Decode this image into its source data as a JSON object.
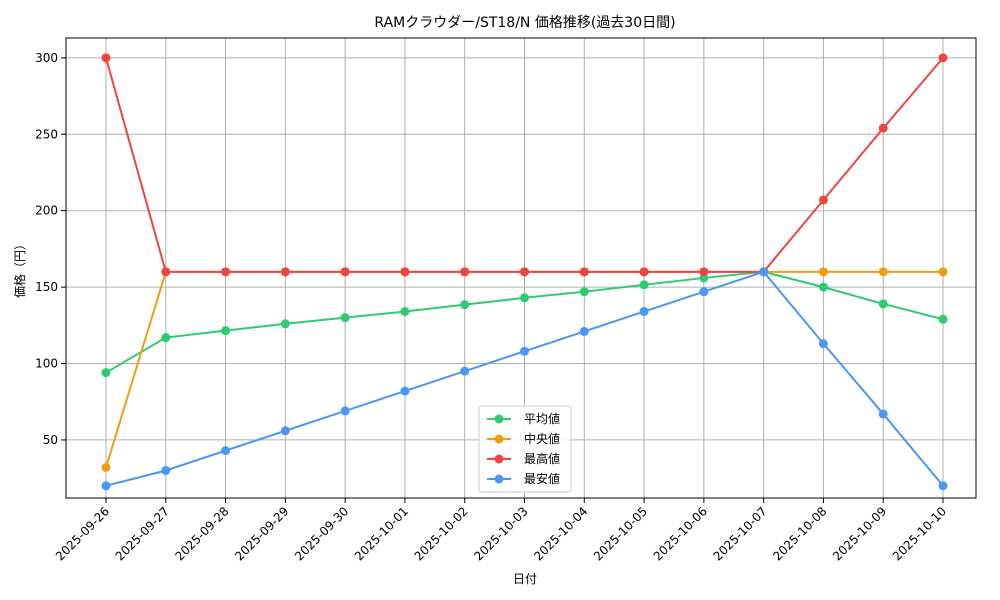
{
  "chart_data": {
    "type": "line",
    "title": "RAMクラウダー/ST18/N 価格推移(過去30日間)",
    "xlabel": "日付",
    "ylabel": "価格（円）",
    "x": [
      "2025-09-26",
      "2025-09-27",
      "2025-09-28",
      "2025-09-29",
      "2025-09-30",
      "2025-10-01",
      "2025-10-02",
      "2025-10-03",
      "2025-10-04",
      "2025-10-05",
      "2025-10-06",
      "2025-10-07",
      "2025-10-08",
      "2025-10-09",
      "2025-10-10"
    ],
    "ylim": [
      12,
      313
    ],
    "yticks": [
      50,
      100,
      150,
      200,
      250,
      300
    ],
    "grid": true,
    "legend_position": "lower-center",
    "series": [
      {
        "name": "平均値",
        "color": "#2ecc71",
        "values": [
          94,
          117,
          121.5,
          126,
          130,
          134,
          138.5,
          143,
          147,
          151.5,
          156,
          160,
          150,
          139,
          129
        ]
      },
      {
        "name": "中央値",
        "color": "#f39c12",
        "values": [
          32,
          160,
          160,
          160,
          160,
          160,
          160,
          160,
          160,
          160,
          160,
          160,
          160,
          160,
          160
        ]
      },
      {
        "name": "最高値",
        "color": "#ef4444",
        "values": [
          300,
          160,
          160,
          160,
          160,
          160,
          160,
          160,
          160,
          160,
          160,
          160,
          207,
          254,
          300
        ]
      },
      {
        "name": "最安値",
        "color": "#4a97f5",
        "values": [
          20,
          30,
          43,
          56,
          69,
          82,
          95,
          108,
          121,
          134,
          147,
          160,
          113,
          67,
          20
        ]
      }
    ]
  }
}
